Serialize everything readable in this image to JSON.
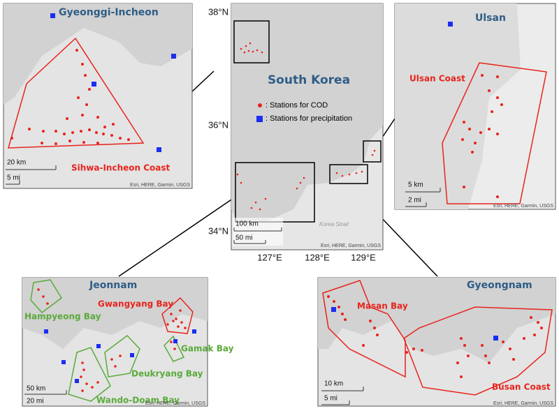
{
  "main_map": {
    "title": "South Korea",
    "lat_labels": [
      "38°N",
      "36°N",
      "34°N"
    ],
    "lon_labels": [
      "127°E",
      "128°E",
      "129°E"
    ],
    "legend": [
      ": Stations for COD",
      ": Stations for precipitation"
    ],
    "scale": [
      "100 km",
      "50 mi"
    ],
    "sea_label": "Korea Strait",
    "attribution": "Esri, HERE, Garmin, USGS"
  },
  "panels": [
    {
      "title": "Gyeonggi-Incheon",
      "regions": [
        "Sihwa-Incheon Coast"
      ],
      "scale": [
        "20 km",
        "5 mi"
      ],
      "attribution": "Esri, HERE, Garmin, USGS"
    },
    {
      "title": "Ulsan",
      "regions": [
        "Ulsan Coast"
      ],
      "scale": [
        "5 km",
        "2 mi"
      ],
      "attribution": "Esri, HERE, Garmin, USGS"
    },
    {
      "title": "Jeonnam",
      "regions": [
        "Hampyeong Bay",
        "Gwangyang Bay",
        "Gamak Bay",
        "Deukryang Bay",
        "Wando-Doam Bay"
      ],
      "scale": [
        "50 km",
        "20 mi"
      ],
      "attribution": "Esri, HERE, Garmin, USGS"
    },
    {
      "title": "Gyeongnam",
      "regions": [
        "Masan Bay",
        "Busan Coast"
      ],
      "scale": [
        "10 km",
        "5 mi"
      ],
      "attribution": "Esri, HERE, Garmin, USGS"
    }
  ]
}
